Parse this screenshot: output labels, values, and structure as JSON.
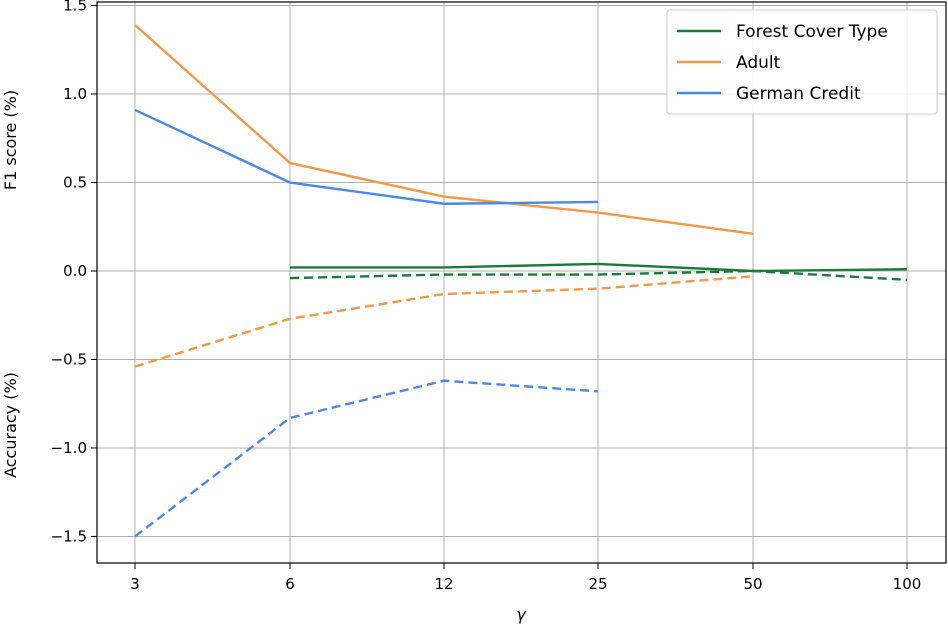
{
  "chart_data": {
    "type": "line",
    "title": "",
    "xlabel": "γ",
    "ylabel_top": "F1 score (%)",
    "ylabel_bottom": "Accuracy (%)",
    "categories": [
      "3",
      "6",
      "12",
      "25",
      "50",
      "100"
    ],
    "y_ticks": [
      "−1.5",
      "−1.0",
      "−0.5",
      "0.0",
      "0.5",
      "1.0",
      "1.5"
    ],
    "y_tick_values": [
      -1.5,
      -1.0,
      -0.5,
      0.0,
      0.5,
      1.0,
      1.5
    ],
    "ylim": [
      -1.65,
      1.52
    ],
    "grid": true,
    "legend_position": "top-right",
    "series": [
      {
        "name": "Forest Cover Type",
        "color": "#1b7a3b",
        "f1": [
          null,
          0.02,
          0.02,
          0.04,
          0.0,
          0.01
        ],
        "accuracy": [
          null,
          -0.04,
          -0.02,
          -0.02,
          0.0,
          -0.05
        ]
      },
      {
        "name": "Adult",
        "color": "#f39848",
        "f1": [
          1.39,
          0.61,
          0.42,
          0.33,
          0.21,
          null
        ],
        "accuracy": [
          -0.54,
          -0.27,
          -0.13,
          -0.1,
          -0.03,
          null
        ]
      },
      {
        "name": "German Credit",
        "color": "#4a89e8",
        "f1": [
          0.91,
          0.5,
          0.38,
          0.39,
          null,
          null
        ],
        "accuracy": [
          -1.5,
          -0.83,
          -0.62,
          -0.68,
          null,
          null
        ]
      }
    ]
  }
}
